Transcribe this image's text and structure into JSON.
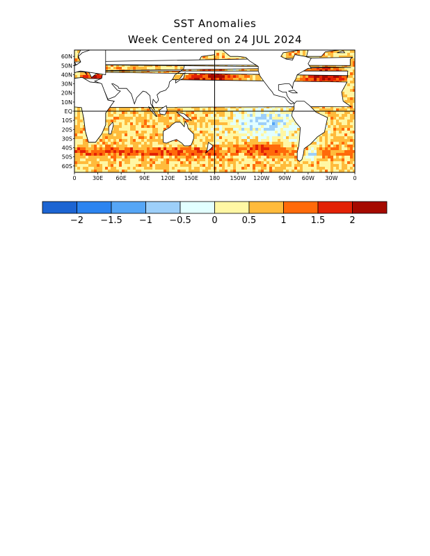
{
  "title": "SST Anomalies",
  "subtitle": "Week Centered on 24 JUL 2024",
  "map": {
    "lat_labels": [
      "60N",
      "50N",
      "40N",
      "30N",
      "20N",
      "10N",
      "EQ",
      "10S",
      "20S",
      "30S",
      "40S",
      "50S",
      "60S"
    ],
    "lon_labels": [
      "0",
      "30E",
      "60E",
      "90E",
      "120E",
      "150E",
      "180",
      "150W",
      "120W",
      "90W",
      "60W",
      "30W",
      "0"
    ],
    "colors": {
      "land": "#ffffff",
      "coast": "#000000"
    }
  },
  "colorbar": {
    "colors": [
      "#1c64d2",
      "#2c84f0",
      "#56a6f6",
      "#9dcff9",
      "#e2ffff",
      "#fff7a4",
      "#ffbb3c",
      "#ff6a0a",
      "#e32105",
      "#a50a00"
    ],
    "tick_labels": [
      "−2",
      "−1.5",
      "−1",
      "−0.5",
      "0",
      "0.5",
      "1",
      "1.5",
      "2"
    ]
  }
}
